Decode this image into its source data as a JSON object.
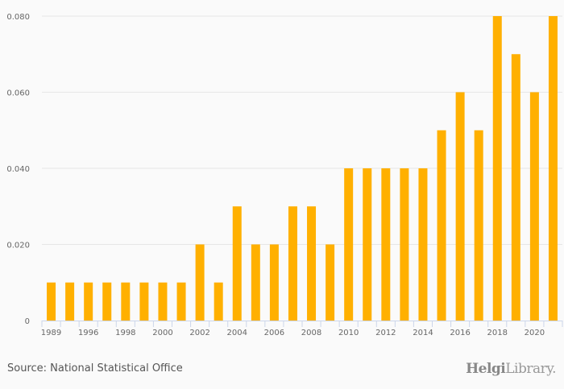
{
  "chart_data": {
    "type": "bar",
    "categories": [
      "1989",
      "1995",
      "1996",
      "1997",
      "1998",
      "1999",
      "2000",
      "2001",
      "2002",
      "2003",
      "2004",
      "2005",
      "2006",
      "2007",
      "2008",
      "2009",
      "2010",
      "2011",
      "2012",
      "2013",
      "2014",
      "2015",
      "2016",
      "2017",
      "2018",
      "2019",
      "2020",
      "2021"
    ],
    "values": [
      0.01,
      0.01,
      0.01,
      0.01,
      0.01,
      0.01,
      0.01,
      0.01,
      0.02,
      0.01,
      0.03,
      0.02,
      0.02,
      0.03,
      0.03,
      0.02,
      0.04,
      0.04,
      0.04,
      0.04,
      0.04,
      0.05,
      0.06,
      0.05,
      0.08,
      0.07,
      0.06,
      0.08
    ],
    "x_tick_labels": [
      "1989",
      "1996",
      "1998",
      "2000",
      "2002",
      "2004",
      "2006",
      "2008",
      "2010",
      "2012",
      "2014",
      "2016",
      "2018",
      "2020"
    ],
    "y_ticks": [
      0,
      0.02,
      0.04,
      0.06,
      0.08
    ],
    "y_tick_labels": [
      "0",
      "0.020",
      "0.040",
      "0.060",
      "0.080"
    ],
    "ylim": [
      0,
      0.08
    ],
    "title": "",
    "xlabel": "",
    "ylabel": "",
    "grid": true,
    "bar_color": "#ffb000"
  },
  "footer": {
    "source": "Source: National Statistical Office",
    "logo_bold": "Helgi",
    "logo_light": "Library."
  }
}
